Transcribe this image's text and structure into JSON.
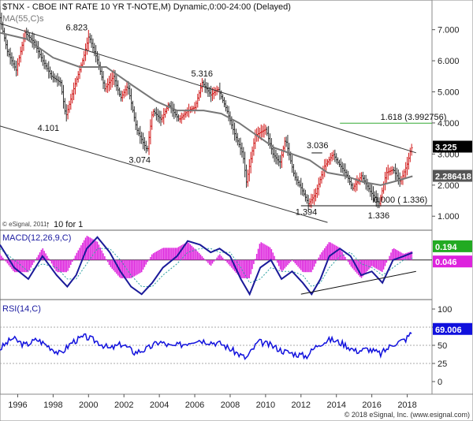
{
  "header": {
    "title": "$TNX - CBOE INT RATE 10 YR T-NOTE,M) Dynamic,0:00-24:00 (Delayed)",
    "ma_label": "MA(55,C)s"
  },
  "footer": {
    "copyright": "© eSignal, 2011",
    "ratio": "10 for 1",
    "credit": "© 2018 eSignal, Inc. (www.esignal.com)"
  },
  "colors": {
    "up": "#d01818",
    "down": "#303030",
    "ma": "#777777",
    "channel": "#333333",
    "fib": "#33aa33",
    "macd_line": "#1a1a99",
    "macd_signal": "#2aa0a0",
    "macd_hist": "#dd22dd",
    "rsi": "#1010dd",
    "macd_badge": "#22aa22",
    "signal_badge": "#dd22dd",
    "price_badge": "#000000",
    "ma_badge": "#555555"
  },
  "chart_data": [
    {
      "type": "line",
      "panel": "price",
      "title": "$TNX - CBOE INT RATE 10 YR T-NOTE,M) Dynamic,0:00-24:00 (Delayed)",
      "x_ticks": [
        "1996",
        "1998",
        "2000",
        "2002",
        "2004",
        "2006",
        "2008",
        "2010",
        "2012",
        "2014",
        "2016",
        "2018"
      ],
      "y_ticks": [
        "1.000",
        "2.000",
        "3.000",
        "4.000",
        "5.000",
        "6.000",
        "7.000"
      ],
      "ylim": [
        0.6,
        7.6
      ],
      "xlim": [
        1995.0,
        2019.4
      ],
      "price": {
        "x": [
          1995.0,
          1995.5,
          1996.0,
          1996.5,
          1997.0,
          1997.5,
          1998.0,
          1998.5,
          1998.8,
          1999.3,
          1999.8,
          2000.1,
          2000.6,
          2001.0,
          2001.5,
          2001.9,
          2002.3,
          2002.8,
          2003.4,
          2003.7,
          2004.2,
          2004.6,
          2005.2,
          2005.7,
          2006.1,
          2006.5,
          2007.0,
          2007.4,
          2007.9,
          2008.3,
          2008.8,
          2009.0,
          2009.5,
          2010.1,
          2010.5,
          2010.9,
          2011.2,
          2011.7,
          2012.1,
          2012.5,
          2012.9,
          2013.4,
          2013.9,
          2014.2,
          2014.6,
          2015.0,
          2015.5,
          2016.0,
          2016.5,
          2016.9,
          2017.3,
          2017.7,
          2018.1,
          2018.3
        ],
        "y": [
          7.6,
          6.3,
          5.7,
          6.9,
          6.6,
          6.0,
          5.5,
          5.3,
          4.2,
          5.2,
          6.1,
          6.8,
          6.0,
          5.1,
          5.5,
          4.8,
          5.2,
          3.8,
          3.1,
          4.4,
          4.1,
          4.6,
          4.1,
          4.4,
          4.5,
          5.3,
          4.9,
          5.1,
          4.4,
          3.7,
          3.0,
          2.1,
          3.6,
          3.8,
          3.0,
          2.7,
          3.5,
          2.3,
          1.9,
          1.4,
          1.7,
          2.6,
          3.0,
          2.7,
          2.4,
          1.9,
          2.3,
          1.8,
          1.4,
          2.4,
          2.5,
          2.1,
          2.7,
          3.2
        ]
      },
      "ma55": {
        "x": [
          1995.0,
          1996.5,
          1998.0,
          1999.5,
          2001.0,
          2002.5,
          2003.8,
          2005.0,
          2006.5,
          2007.5,
          2008.5,
          2009.5,
          2010.5,
          2011.5,
          2012.5,
          2013.5,
          2014.5,
          2015.5,
          2016.5,
          2017.5,
          2018.3
        ],
        "y": [
          6.9,
          6.7,
          6.1,
          5.8,
          5.8,
          5.2,
          4.7,
          4.4,
          4.4,
          4.3,
          4.0,
          3.6,
          3.2,
          3.0,
          2.8,
          2.4,
          2.3,
          2.1,
          2.0,
          2.15,
          2.286418
        ]
      },
      "channel_upper": {
        "x": [
          1995.0,
          2018.5
        ],
        "y": [
          7.2,
          3.04
        ]
      },
      "channel_lower": {
        "x": [
          1995.0,
          2013.5
        ],
        "y": [
          3.9,
          0.8
        ]
      },
      "support_line": {
        "x": [
          2012.0,
          2019.4
        ],
        "y": [
          1.336,
          1.336
        ]
      },
      "resistance_line": {
        "x": [
          2012.6,
          2013.2
        ],
        "y": [
          3.036,
          3.036
        ]
      },
      "fib_line": {
        "x": [
          2014.2,
          2019.4
        ],
        "y": [
          3.992756,
          3.992756
        ]
      },
      "annotations": [
        {
          "label": "6.823",
          "x": 1999.6,
          "y": 6.823
        },
        {
          "label": "5.316",
          "x": 2006.5,
          "y": 5.316
        },
        {
          "label": "4.101",
          "x": 1998.0,
          "y": 4.101
        },
        {
          "label": "3.074",
          "x": 2002.8,
          "y": 3.074
        },
        {
          "label": "3.036",
          "x": 2013.2,
          "y": 3.036
        },
        {
          "label": "1.394",
          "x": 2012.3,
          "y": 1.394
        },
        {
          "label": "1.336",
          "x": 2016.3,
          "y": 1.336
        },
        {
          "label": "0.000 ( 1.336)",
          "x": 2016.0,
          "y": 1.336
        },
        {
          "label": "1.618 (3.992756)",
          "x": 2016.4,
          "y": 3.992756
        }
      ],
      "badges": {
        "last": "3.225",
        "ma": "2.286418"
      }
    },
    {
      "type": "line",
      "panel": "macd",
      "title": "MACD(12,26,9,C)",
      "badges": {
        "macd": "0.194",
        "signal": "0.046"
      },
      "x": [
        1995.0,
        1995.8,
        1996.6,
        1997.4,
        1998.2,
        1998.8,
        1999.3,
        1999.9,
        2000.5,
        2001.2,
        2001.8,
        2002.4,
        2003.0,
        2003.6,
        2004.2,
        2005.0,
        2005.6,
        2006.3,
        2006.9,
        2007.4,
        2008.0,
        2008.6,
        2009.1,
        2009.7,
        2010.3,
        2010.9,
        2011.5,
        2012.1,
        2012.6,
        2013.1,
        2013.6,
        2014.2,
        2014.8,
        2015.4,
        2016.0,
        2016.6,
        2017.2,
        2017.8,
        2018.3
      ],
      "macd": [
        0.4,
        -0.2,
        -0.5,
        0.1,
        -0.4,
        -0.7,
        -0.4,
        0.3,
        0.6,
        0.2,
        -0.3,
        -0.7,
        -0.9,
        -0.6,
        -0.2,
        0.1,
        0.5,
        0.4,
        0.2,
        0.3,
        0.1,
        -0.5,
        -0.9,
        -0.2,
        0.0,
        -0.5,
        -0.3,
        -0.6,
        -0.9,
        -0.5,
        0.1,
        0.3,
        0.1,
        -0.4,
        -0.3,
        -0.6,
        0.0,
        0.1,
        0.194
      ],
      "signal": [
        0.3,
        0.0,
        -0.3,
        -0.1,
        -0.2,
        -0.5,
        -0.5,
        -0.1,
        0.3,
        0.3,
        0.0,
        -0.4,
        -0.7,
        -0.7,
        -0.4,
        -0.1,
        0.2,
        0.3,
        0.3,
        0.2,
        0.2,
        -0.2,
        -0.6,
        -0.5,
        -0.2,
        -0.3,
        -0.3,
        -0.4,
        -0.7,
        -0.6,
        -0.2,
        0.1,
        0.2,
        -0.1,
        -0.2,
        -0.4,
        -0.2,
        0.0,
        0.046
      ],
      "divergence_line": {
        "x": [
          2012.0,
          2018.5
        ],
        "y": [
          -0.9,
          -0.3
        ]
      },
      "ylim": [
        -1.0,
        0.7
      ]
    },
    {
      "type": "line",
      "panel": "rsi",
      "title": "RSI(14,C)",
      "y_ticks": [
        "0",
        "25",
        "50",
        "75",
        "100"
      ],
      "ylim": [
        0,
        100
      ],
      "badge": "69.006",
      "x": [
        1995.0,
        1995.7,
        1996.4,
        1997.1,
        1997.8,
        1998.4,
        1999.1,
        1999.8,
        2000.5,
        2001.2,
        2001.9,
        2002.6,
        2003.3,
        2004.0,
        2004.7,
        2005.4,
        2006.1,
        2006.8,
        2007.5,
        2008.2,
        2008.9,
        2009.6,
        2010.3,
        2011.0,
        2011.7,
        2012.3,
        2013.0,
        2013.7,
        2014.4,
        2015.1,
        2015.8,
        2016.5,
        2017.2,
        2017.9,
        2018.3
      ],
      "y": [
        45,
        60,
        50,
        58,
        48,
        38,
        55,
        62,
        55,
        45,
        52,
        40,
        45,
        55,
        48,
        52,
        58,
        55,
        52,
        42,
        32,
        55,
        50,
        42,
        38,
        35,
        52,
        58,
        52,
        42,
        45,
        38,
        52,
        58,
        69.006
      ],
      "ref_lines": [
        75,
        50,
        25
      ]
    }
  ]
}
